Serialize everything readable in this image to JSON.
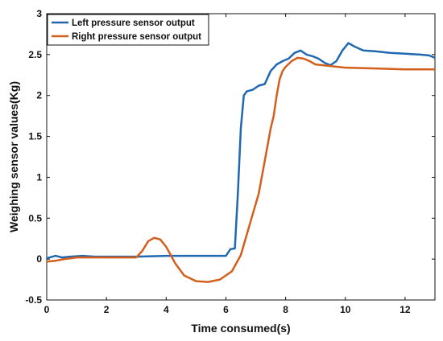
{
  "chart_data": {
    "type": "line",
    "title": "",
    "xlabel": "Time consumed(s)",
    "ylabel": "Weighing sensor values(Kg)",
    "xlim": [
      0,
      13
    ],
    "ylim": [
      -0.5,
      3
    ],
    "xticks": [
      0,
      2,
      4,
      6,
      8,
      10,
      12
    ],
    "yticks": [
      -0.5,
      0,
      0.5,
      1,
      1.5,
      2,
      2.5,
      3
    ],
    "grid": false,
    "legend_position": "top-left",
    "series": [
      {
        "name": "Left pressure sensor output",
        "color": "#2068b0",
        "x": [
          0,
          0.1,
          0.3,
          0.5,
          0.8,
          1.2,
          1.6,
          2.0,
          3.0,
          4.0,
          5.0,
          6.0,
          6.15,
          6.3,
          6.4,
          6.5,
          6.6,
          6.7,
          6.9,
          7.1,
          7.3,
          7.5,
          7.7,
          7.9,
          8.1,
          8.3,
          8.5,
          8.7,
          8.9,
          9.1,
          9.3,
          9.5,
          9.7,
          9.9,
          10.1,
          10.3,
          10.6,
          11.0,
          11.5,
          12.0,
          12.5,
          12.8,
          13.0
        ],
        "y": [
          0.01,
          0.02,
          0.04,
          0.02,
          0.03,
          0.04,
          0.03,
          0.03,
          0.03,
          0.04,
          0.04,
          0.04,
          0.12,
          0.13,
          0.8,
          1.6,
          2.0,
          2.05,
          2.07,
          2.12,
          2.14,
          2.3,
          2.38,
          2.42,
          2.45,
          2.52,
          2.55,
          2.5,
          2.48,
          2.45,
          2.4,
          2.37,
          2.42,
          2.55,
          2.64,
          2.6,
          2.55,
          2.54,
          2.52,
          2.51,
          2.5,
          2.49,
          2.46
        ]
      },
      {
        "name": "Right pressure sensor output",
        "color": "#d35f1c",
        "x": [
          0,
          0.3,
          0.6,
          1.0,
          2.0,
          3.0,
          3.2,
          3.4,
          3.6,
          3.8,
          4.0,
          4.3,
          4.6,
          5.0,
          5.4,
          5.8,
          6.2,
          6.5,
          6.7,
          6.9,
          7.1,
          7.3,
          7.5,
          7.6,
          7.7,
          7.8,
          7.9,
          8.0,
          8.2,
          8.4,
          8.6,
          8.8,
          9.0,
          9.5,
          10.0,
          11.0,
          12.0,
          13.0
        ],
        "y": [
          -0.03,
          -0.02,
          0.0,
          0.02,
          0.02,
          0.02,
          0.1,
          0.22,
          0.26,
          0.24,
          0.15,
          -0.05,
          -0.2,
          -0.27,
          -0.28,
          -0.25,
          -0.15,
          0.05,
          0.3,
          0.55,
          0.8,
          1.2,
          1.6,
          1.75,
          2.0,
          2.2,
          2.3,
          2.35,
          2.42,
          2.46,
          2.45,
          2.42,
          2.38,
          2.36,
          2.34,
          2.33,
          2.32,
          2.32
        ]
      }
    ]
  }
}
